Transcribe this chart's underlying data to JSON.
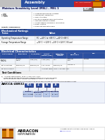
{
  "bg_color": "#E8E8E8",
  "page_bg": "#FFFFFF",
  "header_blue": "#2B4FA0",
  "header_blue2": "#3A5FBE",
  "white": "#FFFFFF",
  "black": "#000000",
  "light_gray": "#F0F0F0",
  "mid_gray": "#CCCCCC",
  "dark_gray": "#666666",
  "red_badge": "#CC2222",
  "ordering_bg": "#D0DCF0",
  "ordering_box_bg": "#2B4FA0",
  "footer_logo_bg": "#CC6600",
  "footer_logo_dark": "#994400",
  "table_row_alt": "#E8EEF8",
  "table_row_white": "#FFFFFF",
  "section_bar": "#2B4FA0",
  "top_diagonal_gray": "#B0B0B0",
  "top_white_area": "#FFFFFF",
  "msl_bar_blue": "#3A5FBE",
  "bullet_area_bg": "#FFFFFF"
}
